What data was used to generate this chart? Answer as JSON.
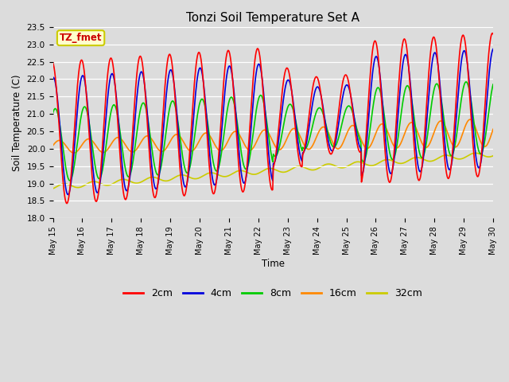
{
  "title": "Tonzi Soil Temperature Set A",
  "xlabel": "Time",
  "ylabel": "Soil Temperature (C)",
  "annotation": "TZ_fmet",
  "ylim": [
    18.0,
    23.5
  ],
  "yticks": [
    18.0,
    18.5,
    19.0,
    19.5,
    20.0,
    20.5,
    21.0,
    21.5,
    22.0,
    22.5,
    23.0,
    23.5
  ],
  "background_color": "#dcdcdc",
  "line_colors": {
    "2cm": "#ff0000",
    "4cm": "#0000dd",
    "8cm": "#00cc00",
    "16cm": "#ff8800",
    "32cm": "#cccc00"
  },
  "xtick_labels": [
    "May 15",
    "May 16",
    "May 17",
    "May 18",
    "May 19",
    "May 20",
    "May 21",
    "May 22",
    "May 23",
    "May 24",
    "May 25",
    "May 26",
    "May 27",
    "May 28",
    "May 29",
    "May 30"
  ],
  "annotation_box_color": "#ffffcc",
  "annotation_box_edge": "#cccc00",
  "annotation_text_color": "#cc0000",
  "figsize": [
    6.4,
    4.8
  ],
  "dpi": 100
}
